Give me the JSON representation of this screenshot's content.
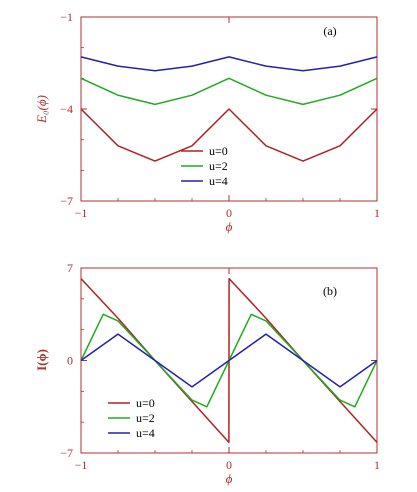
{
  "chart_data": [
    {
      "type": "line",
      "panel_label": "(a)",
      "xlabel": "ϕ",
      "ylabel": "E₀(ϕ)",
      "xlim": [
        -1,
        1
      ],
      "ylim": [
        -7,
        -1
      ],
      "xticks": [
        "-1",
        "0",
        "1"
      ],
      "yticks": [
        "-1",
        "-4",
        "-7"
      ],
      "xtick_values": [
        -1,
        0,
        1
      ],
      "ytick_values": [
        -1,
        -4,
        -7
      ],
      "legend_position": "bottom-center",
      "x": [
        -1,
        -0.75,
        -0.5,
        -0.25,
        0,
        0.25,
        0.5,
        0.75,
        1
      ],
      "series": [
        {
          "name": "u=0",
          "color": "#b22222",
          "values": [
            -4.0,
            -5.2,
            -5.7,
            -5.2,
            -4.0,
            -5.2,
            -5.7,
            -5.2,
            -4.0
          ]
        },
        {
          "name": "u=2",
          "color": "#22aa22",
          "values": [
            -3.0,
            -3.55,
            -3.85,
            -3.55,
            -3.0,
            -3.55,
            -3.85,
            -3.55,
            -3.0
          ]
        },
        {
          "name": "u=4",
          "color": "#2222aa",
          "values": [
            -2.3,
            -2.6,
            -2.75,
            -2.6,
            -2.3,
            -2.6,
            -2.75,
            -2.6,
            -2.3
          ]
        }
      ]
    },
    {
      "type": "line",
      "panel_label": "(b)",
      "xlabel": "ϕ",
      "ylabel": "I(ϕ)",
      "xlim": [
        -1,
        1
      ],
      "ylim": [
        -7,
        7
      ],
      "xticks": [
        "-1",
        "0",
        "1"
      ],
      "yticks": [
        "7",
        "0",
        "-7"
      ],
      "xtick_values": [
        -1,
        0,
        1
      ],
      "ytick_values": [
        7,
        0,
        -7
      ],
      "legend_position": "bottom-left",
      "series": [
        {
          "name": "u=0",
          "color": "#b22222",
          "x": [
            -1,
            -0.75,
            -0.5,
            -0.25,
            -0.001,
            0.001,
            0.25,
            0.5,
            0.75,
            1
          ],
          "values": [
            6.2,
            3.2,
            0,
            -3.1,
            -6.2,
            6.2,
            3.2,
            0,
            -3.1,
            -6.2
          ]
        },
        {
          "name": "u=2",
          "color": "#22aa22",
          "x": [
            -1,
            -0.85,
            -0.75,
            -0.5,
            -0.25,
            -0.15,
            0,
            0.15,
            0.25,
            0.5,
            0.75,
            0.85,
            1
          ],
          "values": [
            0,
            3.5,
            3.0,
            0,
            -3.0,
            -3.5,
            0,
            3.5,
            3.0,
            0,
            -3.0,
            -3.5,
            0
          ]
        },
        {
          "name": "u=4",
          "color": "#2222aa",
          "x": [
            -1,
            -0.75,
            -0.5,
            -0.25,
            0,
            0.25,
            0.5,
            0.75,
            1
          ],
          "values": [
            0,
            2.0,
            0,
            -2.0,
            0,
            2.0,
            0,
            -2.0,
            0
          ]
        }
      ]
    }
  ]
}
